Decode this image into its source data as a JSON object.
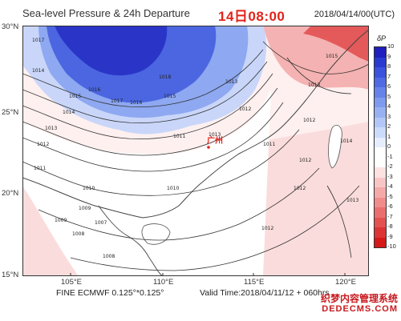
{
  "header": {
    "title": "Sea-level Pressure & 24h Departure",
    "time": "14日08:00",
    "issue_time": "2018/04/14/00(UTC)"
  },
  "map": {
    "lat_labels": [
      "30°N",
      "25°N",
      "20°N",
      "15°N"
    ],
    "lon_labels": [
      "105°E",
      "110°E",
      "115°E",
      "120°E"
    ],
    "city_label": "广州",
    "isobar_labels": [
      "1017",
      "1016",
      "1015",
      "1014",
      "1018",
      "1017",
      "1016",
      "1013",
      "1012",
      "1011",
      "1015",
      "1014",
      "1013",
      "1012",
      "1010",
      "1009",
      "1008",
      "1011",
      "1010",
      "1007",
      "1012",
      "1009",
      "1008",
      "1013",
      "1012",
      "1011",
      "1013",
      "1012",
      "1012",
      "1014",
      "1013",
      "1015"
    ]
  },
  "colorbar": {
    "title": "δP",
    "ticks": [
      "10",
      "9",
      "8",
      "7",
      "6",
      "5",
      "4",
      "3",
      "2",
      "1",
      "0",
      "-1",
      "-2",
      "-3",
      "-4",
      "-5",
      "-6",
      "-7",
      "-8",
      "-9",
      "-10"
    ],
    "colors": [
      "#1f1fbf",
      "#2a3ad1",
      "#3a52dc",
      "#4f6ae3",
      "#6683e9",
      "#7f9bef",
      "#98b1f3",
      "#b2c7f7",
      "#cbdbfa",
      "#e6edfd",
      "#ffffff",
      "#ffffff",
      "#fde2e2",
      "#f9c6c6",
      "#f5a9a9",
      "#f08c8c",
      "#ea6e6e",
      "#e35151",
      "#dc3434",
      "#d51818"
    ]
  },
  "footer": {
    "model": "FINE ECMWF 0.125°*0.125°",
    "valid": "Valid Time:2018/04/11/12 + 060hrs"
  },
  "watermark": {
    "line1": "织梦内容管理系统",
    "line2": "DEDECMS.COM"
  }
}
